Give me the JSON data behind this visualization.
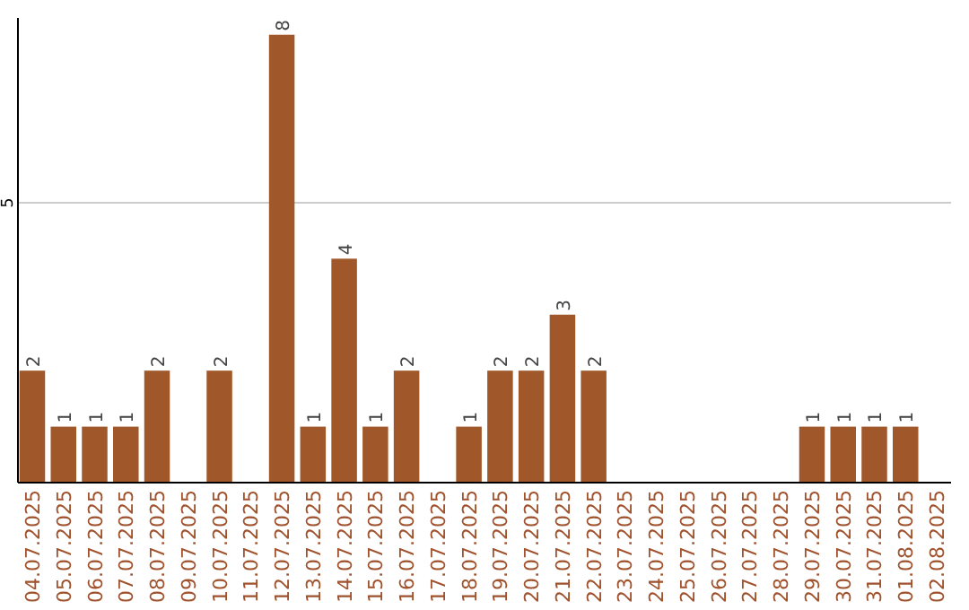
{
  "chart_data": {
    "type": "bar",
    "categories": [
      "04.07.2025",
      "05.07.2025",
      "06.07.2025",
      "07.07.2025",
      "08.07.2025",
      "09.07.2025",
      "10.07.2025",
      "11.07.2025",
      "12.07.2025",
      "13.07.2025",
      "14.07.2025",
      "15.07.2025",
      "16.07.2025",
      "17.07.2025",
      "18.07.2025",
      "19.07.2025",
      "20.07.2025",
      "21.07.2025",
      "22.07.2025",
      "23.07.2025",
      "24.07.2025",
      "25.07.2025",
      "26.07.2025",
      "27.07.2025",
      "28.07.2025",
      "29.07.2025",
      "30.07.2025",
      "31.07.2025",
      "01.08.2025",
      "02.08.2025"
    ],
    "values": [
      2,
      1,
      1,
      1,
      2,
      null,
      2,
      null,
      8,
      1,
      4,
      1,
      2,
      null,
      1,
      2,
      2,
      3,
      2,
      null,
      null,
      null,
      null,
      null,
      null,
      1,
      1,
      1,
      1,
      null
    ],
    "color": "#a0582a",
    "ylim": [
      0,
      8.3
    ],
    "yticks": [
      5
    ],
    "grid": "y",
    "data_labels": true
  }
}
